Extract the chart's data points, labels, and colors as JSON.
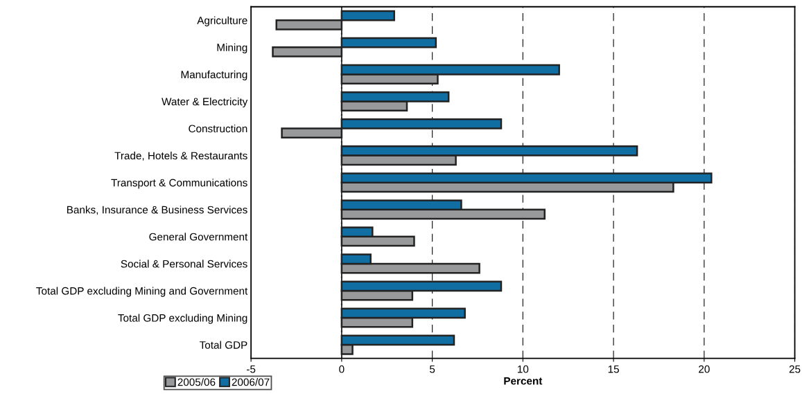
{
  "chart_data": {
    "type": "bar",
    "orientation": "horizontal",
    "xlabel": "Percent",
    "categories": [
      "Agriculture",
      "Mining",
      "Manufacturing",
      "Water & Electricity",
      "Construction",
      "Trade, Hotels & Restaurants",
      "Transport & Communications",
      "Banks, Insurance & Business Services",
      "General Government",
      "Social & Personal Services",
      "Total GDP excluding Mining and Government",
      "Total GDP excluding Mining",
      "Total GDP"
    ],
    "series": [
      {
        "name": "2005/06",
        "color": "#98999b",
        "values": [
          -3.6,
          -3.8,
          5.3,
          3.6,
          -3.3,
          6.3,
          18.3,
          11.2,
          4.0,
          7.6,
          3.9,
          3.9,
          0.6
        ]
      },
      {
        "name": "2006/07",
        "color": "#106ea3",
        "values": [
          2.9,
          5.2,
          12.0,
          5.9,
          8.8,
          16.3,
          20.4,
          6.6,
          1.7,
          1.6,
          8.8,
          6.8,
          6.2
        ]
      }
    ],
    "xlim": [
      -5,
      25
    ],
    "xticks": [
      -5,
      0,
      5,
      10,
      15,
      20,
      25
    ],
    "grid": "x",
    "legend": "bottom left"
  }
}
